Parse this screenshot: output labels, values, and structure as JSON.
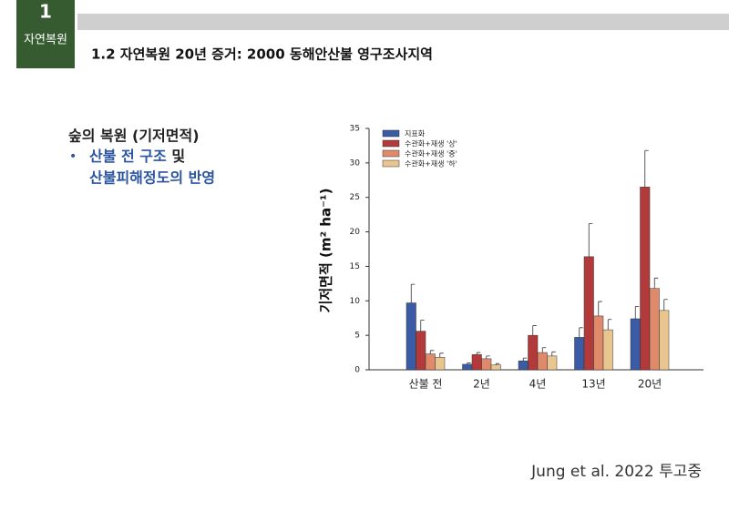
{
  "header": {
    "badge_number": "1",
    "badge_label": "자연복원",
    "title": "1.2 자연복원 20년 증거: 2000 동해안산불 영구조사지역"
  },
  "bullets": {
    "heading": "숲의 복원 (기저면적)",
    "marker": "•",
    "line1_blue": "산불 전 구조",
    "line1_black": "및",
    "line2_blue": "산불피해정도의 반영"
  },
  "citation": "Jung et al. 2022 투고중",
  "chart_data": {
    "type": "bar",
    "y_label": "기저면적 (m² ha⁻¹)",
    "categories": [
      "산불 전",
      "2년",
      "4년",
      "13년",
      "20년"
    ],
    "series": [
      {
        "name": "지표화",
        "color": "#3b5ba5",
        "values": [
          9.7,
          0.8,
          1.3,
          4.7,
          7.4
        ],
        "errors": [
          2.7,
          0.2,
          0.4,
          1.4,
          1.8
        ]
      },
      {
        "name": "수관화+재생 '상'",
        "color": "#b23a3a",
        "values": [
          5.6,
          2.2,
          5.0,
          16.4,
          26.5
        ],
        "errors": [
          1.6,
          0.3,
          1.4,
          4.8,
          5.3
        ]
      },
      {
        "name": "수관화+재생 '중'",
        "color": "#e08a6c",
        "values": [
          2.3,
          1.6,
          2.5,
          7.8,
          11.8
        ],
        "errors": [
          0.5,
          0.4,
          0.7,
          2.1,
          1.5
        ]
      },
      {
        "name": "수관화+재생 '하'",
        "color": "#e9c690",
        "values": [
          1.8,
          0.7,
          2.0,
          5.8,
          8.6
        ],
        "errors": [
          0.6,
          0.2,
          0.6,
          1.5,
          1.6
        ]
      }
    ],
    "ylim": [
      0,
      35
    ],
    "yticks": [
      0,
      5,
      10,
      15,
      20,
      25,
      30,
      35
    ]
  }
}
